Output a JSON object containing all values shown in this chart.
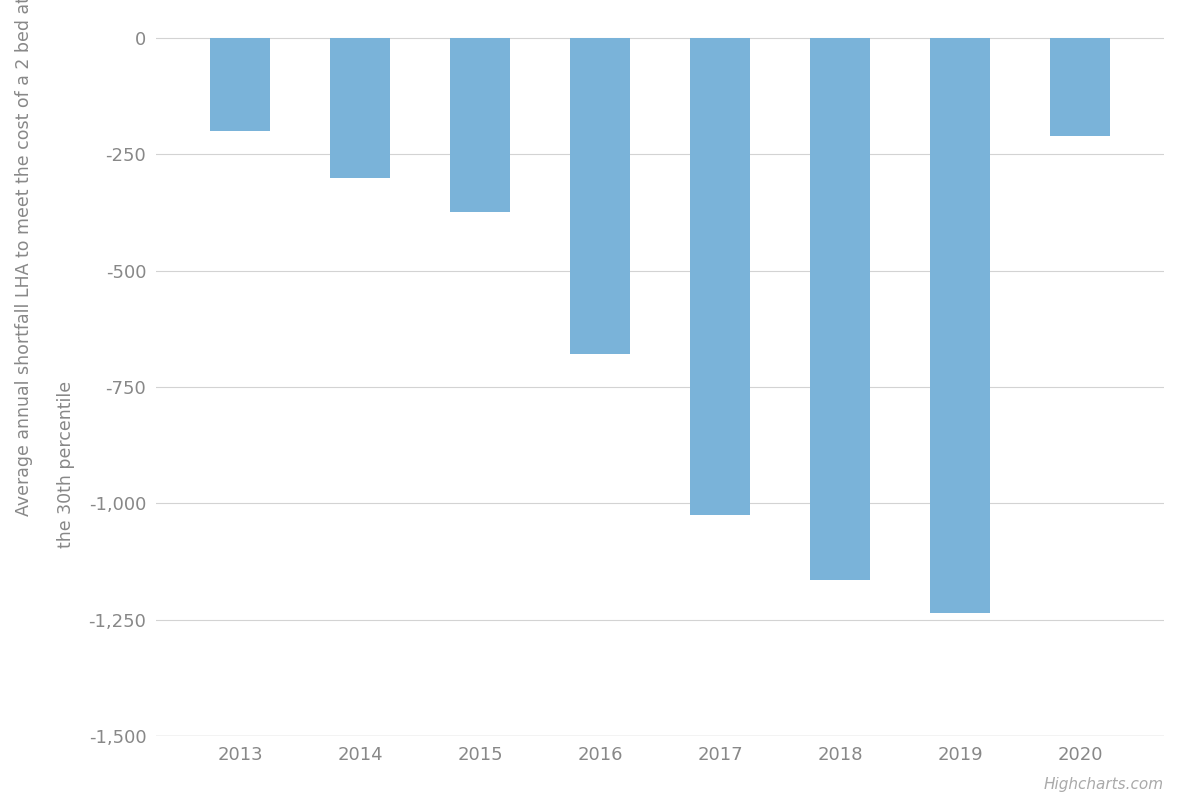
{
  "years": [
    2013,
    2014,
    2015,
    2016,
    2017,
    2018,
    2019,
    2020
  ],
  "values": [
    -200,
    -300,
    -375,
    -680,
    -1025,
    -1165,
    -1235,
    -210
  ],
  "bar_color": "#7ab3d9",
  "background_color": "#ffffff",
  "ylabel_line1": "Average annual shortfall LHA to meet the cost of a 2 bed at",
  "ylabel_line2": "the 30th percentile",
  "ylim": [
    -1500,
    30
  ],
  "yticks": [
    0,
    -250,
    -500,
    -750,
    -1000,
    -1250,
    -1500
  ],
  "gridline_color": "#d3d3d3",
  "tick_label_color": "#888888",
  "watermark": "Highcharts.com",
  "bar_width": 0.5,
  "ylabel_fontsize": 12.5,
  "tick_fontsize": 13,
  "watermark_fontsize": 11
}
